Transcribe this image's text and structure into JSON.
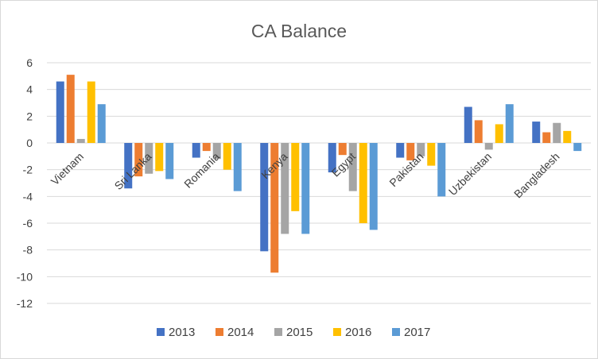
{
  "chart_data": {
    "type": "bar",
    "title": "CA Balance",
    "xlabel": "",
    "ylabel": "",
    "ylim": [
      -12,
      6
    ],
    "yticks": [
      6,
      4,
      2,
      0,
      -2,
      -4,
      -6,
      -8,
      -10,
      -12
    ],
    "grid": true,
    "legend_position": "bottom",
    "categories": [
      "Vietnam",
      "Sri Lanka",
      "Romania",
      "Kenya",
      "Egypt",
      "Pakistan",
      "Uzbekistan",
      "Bangladesh"
    ],
    "series": [
      {
        "name": "2013",
        "color": "#4472c4",
        "values": [
          4.6,
          -3.4,
          -1.1,
          -8.1,
          -2.2,
          -1.1,
          2.7,
          1.6
        ]
      },
      {
        "name": "2014",
        "color": "#ed7d31",
        "values": [
          5.1,
          -2.5,
          -0.6,
          -9.7,
          -0.9,
          -1.3,
          1.7,
          0.8
        ]
      },
      {
        "name": "2015",
        "color": "#a5a5a5",
        "values": [
          0.3,
          -2.3,
          -1.2,
          -6.8,
          -3.6,
          -1.0,
          -0.5,
          1.5
        ]
      },
      {
        "name": "2016",
        "color": "#ffc000",
        "values": [
          4.6,
          -2.1,
          -2.0,
          -5.1,
          -6.0,
          -1.7,
          1.4,
          0.9
        ]
      },
      {
        "name": "2017",
        "color": "#5b9bd5",
        "values": [
          2.9,
          -2.7,
          -3.6,
          -6.8,
          -6.5,
          -4.0,
          2.9,
          -0.6
        ]
      }
    ]
  }
}
